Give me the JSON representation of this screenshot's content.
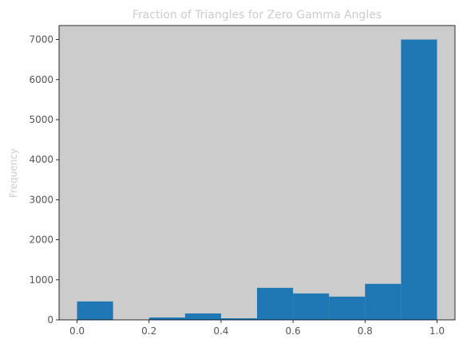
{
  "chart_data": {
    "type": "histogram",
    "title": "Fraction of Triangles for Zero Gamma Angles",
    "ylabel": "Frequency",
    "bins": [
      0,
      0.1,
      0.2,
      0.3,
      0.4,
      0.5,
      0.6,
      0.7,
      0.8,
      0.9,
      1.0
    ],
    "values": [
      460,
      0,
      60,
      160,
      40,
      800,
      660,
      580,
      900,
      7000
    ],
    "color": "#1f77b4",
    "background": "#cccccc",
    "xlim": [
      -0.05,
      1.05
    ],
    "xticks": [
      {
        "value": 0,
        "label": "0.0"
      },
      0.2,
      0.4,
      0.6,
      0.8,
      {
        "value": 1,
        "label": "1.0"
      }
    ],
    "ylim": [
      0,
      7350
    ],
    "yticks": [
      0,
      1000,
      2000,
      3000,
      4000,
      5000,
      6000,
      7000
    ]
  }
}
